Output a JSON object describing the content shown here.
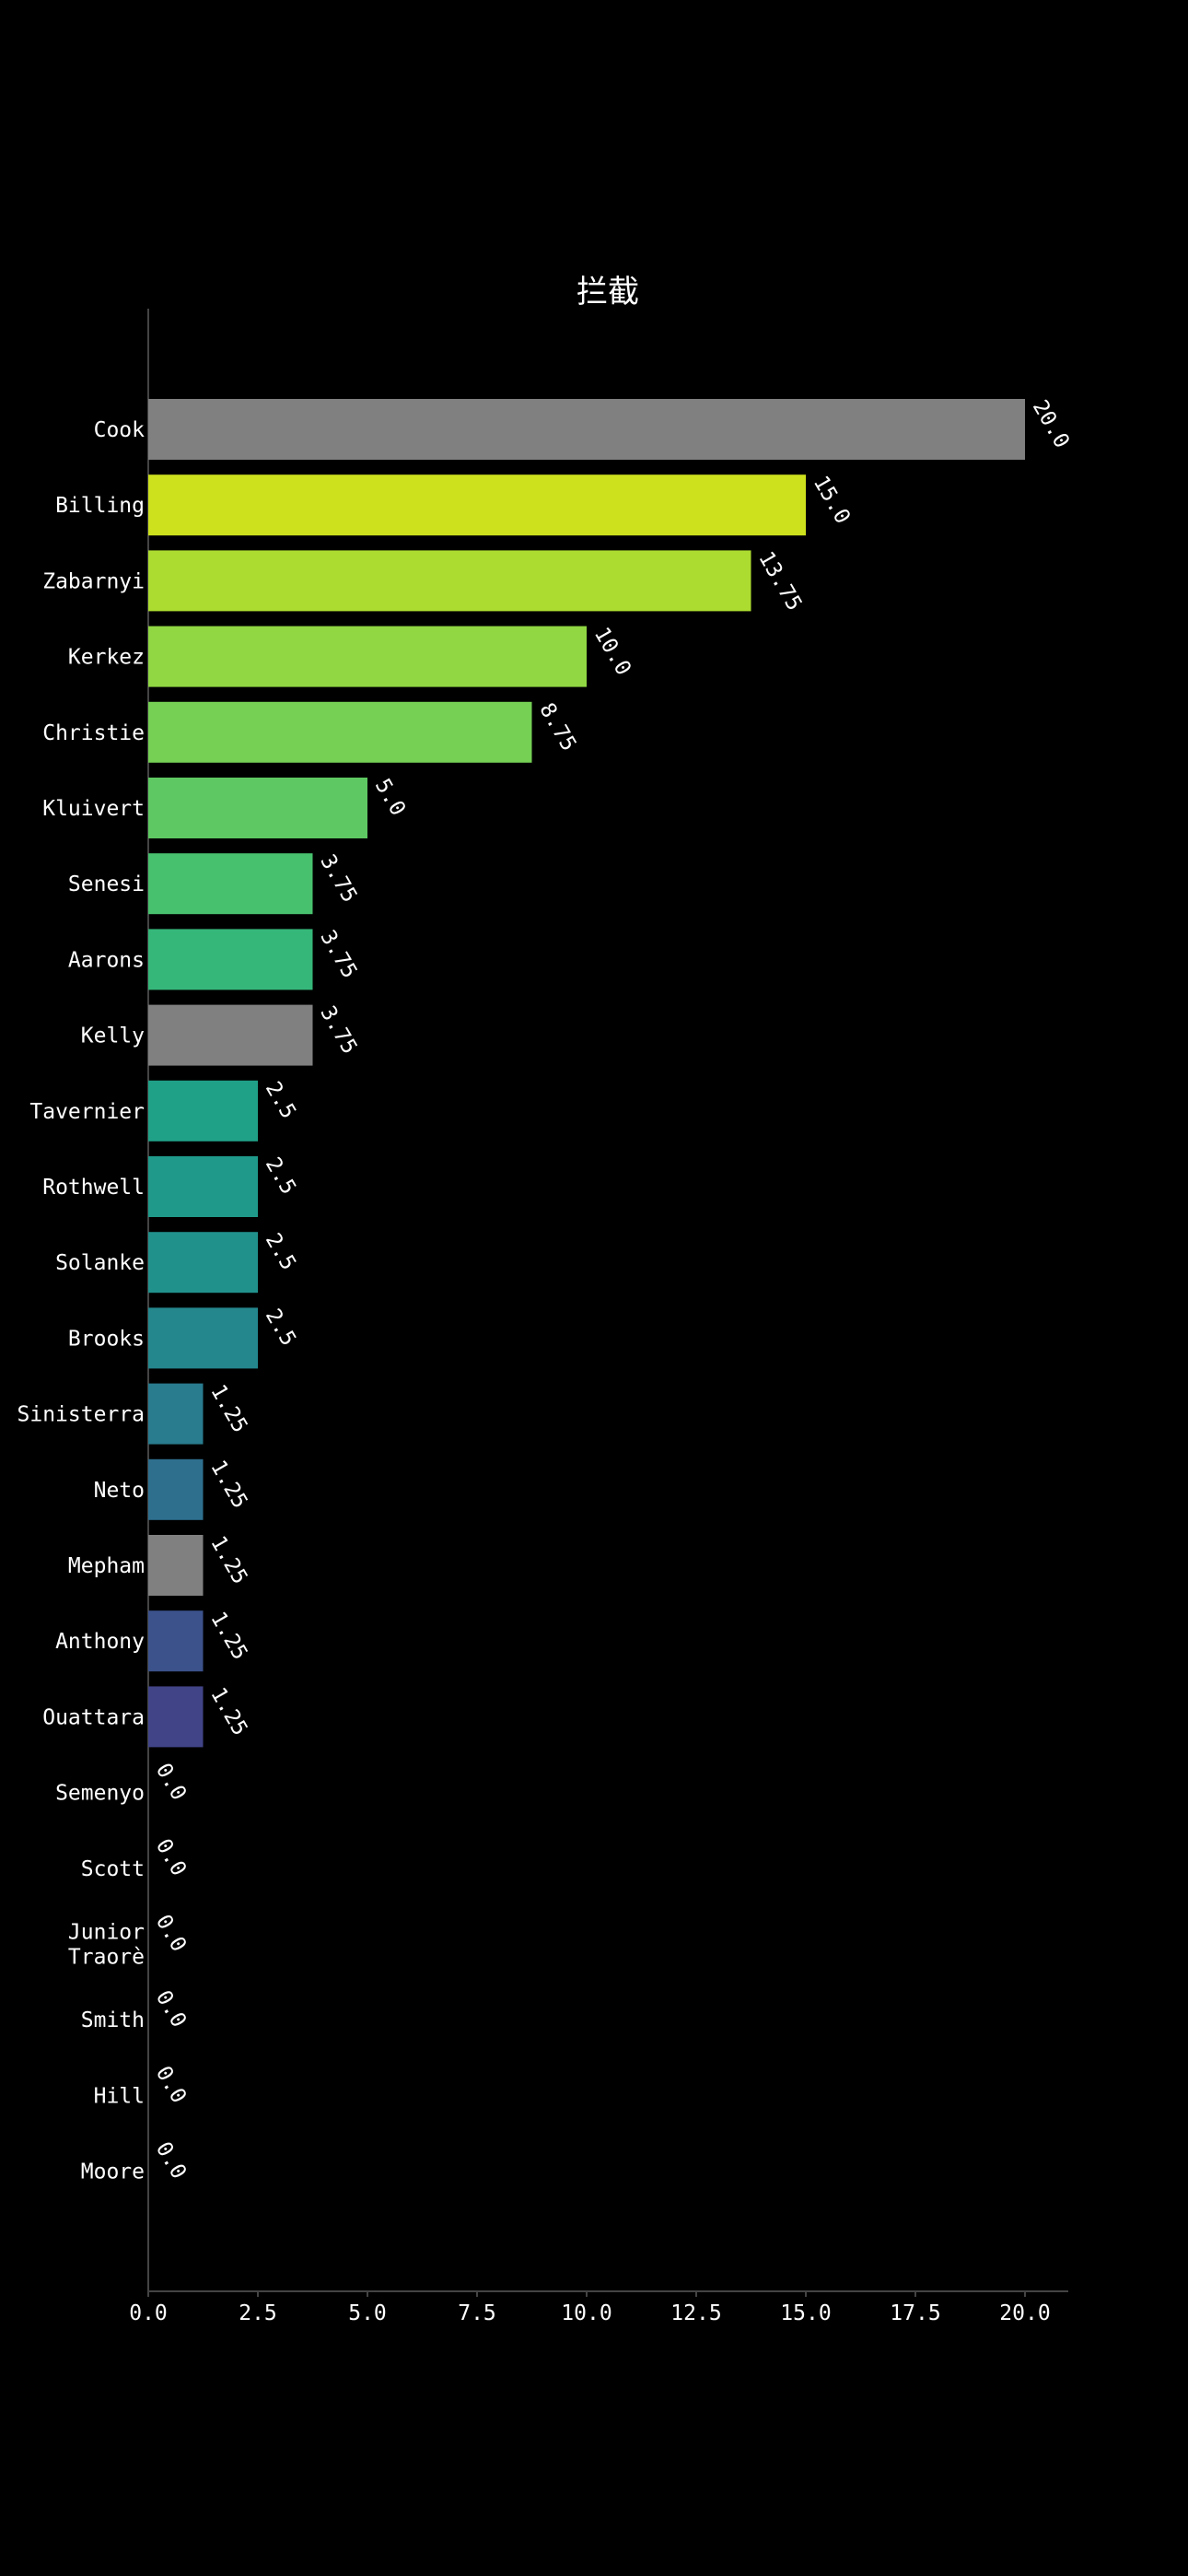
{
  "chart_data": {
    "type": "bar",
    "orientation": "horizontal",
    "title": "拦截",
    "xlabel": "",
    "ylabel": "",
    "xlim": [
      0,
      21
    ],
    "x_ticks": [
      "0.0",
      "2.5",
      "5.0",
      "7.5",
      "10.0",
      "12.5",
      "15.0",
      "17.5",
      "20.0"
    ],
    "grid": false,
    "categories": [
      "Cook",
      "Billing",
      "Zabarnyi",
      "Kerkez",
      "Christie",
      "Kluivert",
      "Senesi",
      "Aarons",
      "Kelly",
      "Tavernier",
      "Rothwell",
      "Solanke",
      "Brooks",
      "Sinisterra",
      "Neto",
      "Mepham",
      "Anthony",
      "Ouattara",
      "Semenyo",
      "Scott",
      "Junior\nTraorè",
      "Smith",
      "Hill",
      "Moore"
    ],
    "values": [
      20.0,
      15.0,
      13.75,
      10.0,
      8.75,
      5.0,
      3.75,
      3.75,
      3.75,
      2.5,
      2.5,
      2.5,
      2.5,
      1.25,
      1.25,
      1.25,
      1.25,
      1.25,
      0.0,
      0.0,
      0.0,
      0.0,
      0.0,
      0.0
    ],
    "value_labels": [
      "20.0",
      "15.0",
      "13.75",
      "10.0",
      "8.75",
      "5.0",
      "3.75",
      "3.75",
      "3.75",
      "2.5",
      "2.5",
      "2.5",
      "2.5",
      "1.25",
      "1.25",
      "1.25",
      "1.25",
      "1.25",
      "0.0",
      "0.0",
      "0.0",
      "0.0",
      "0.0",
      "0.0"
    ],
    "colors": [
      "#808080",
      "#cde11d",
      "#addc30",
      "#90d743",
      "#75d054",
      "#5ec962",
      "#48c16e",
      "#35b779",
      "#808080",
      "#1fa187",
      "#1f9a8a",
      "#21918c",
      "#24878e",
      "#297b8e",
      "#2e6f8e",
      "#808080",
      "#3b528b",
      "#414487",
      "#808080",
      "#808080",
      "#808080",
      "#808080",
      "#808080",
      "#808080"
    ],
    "background": "#000000",
    "text_color": "#ffffff"
  }
}
